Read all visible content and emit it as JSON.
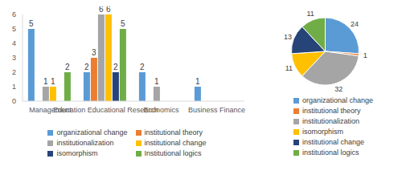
{
  "chart_data": [
    {
      "type": "bar",
      "categories": [
        "Management",
        "Education Educational Research",
        "Economics",
        "Business Finance"
      ],
      "series": [
        {
          "name": "organizational change",
          "color": "#5b9bd5",
          "values": [
            5,
            2,
            2,
            1
          ]
        },
        {
          "name": "institutional theory",
          "color": "#ed7d31",
          "values": [
            0,
            3,
            0,
            0
          ]
        },
        {
          "name": "institutionalization",
          "color": "#a5a5a5",
          "values": [
            1,
            6,
            1,
            null
          ]
        },
        {
          "name": "institutional change",
          "color": "#ffc000",
          "values": [
            1,
            6,
            null,
            null
          ]
        },
        {
          "name": "isomorphism",
          "color": "#264478",
          "values": [
            null,
            2,
            null,
            null
          ]
        },
        {
          "name": "Institutional logics",
          "color": "#70ad47",
          "values": [
            2,
            5,
            null,
            null
          ]
        }
      ],
      "ylim": [
        0,
        6
      ],
      "yticks": [
        0,
        1,
        2,
        3,
        4,
        5,
        6
      ],
      "grid": false,
      "data_labels": true,
      "legend": "bottom"
    },
    {
      "type": "pie",
      "categories": [
        "organizational change",
        "institutional theory",
        "institutionalization",
        "isomorphism",
        "institutional change",
        "institutional logics"
      ],
      "values": [
        24,
        1,
        32,
        11,
        13,
        11
      ],
      "colors": [
        "#5b9bd5",
        "#ed7d31",
        "#a5a5a5",
        "#ffc000",
        "#264478",
        "#70ad47"
      ],
      "data_labels": true,
      "legend": "bottom"
    }
  ]
}
